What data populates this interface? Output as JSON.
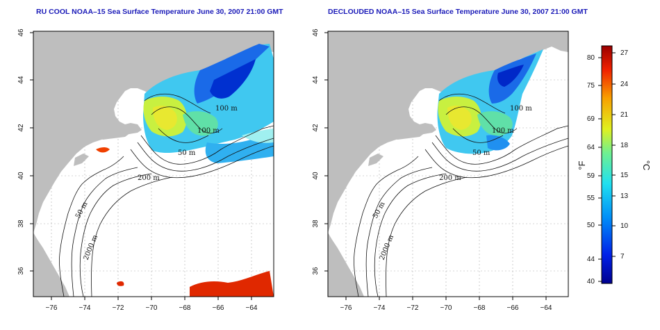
{
  "maps": [
    {
      "title": "RU COOL NOAA–15 Sea Surface Temperature June 30, 2007 21:00 GMT",
      "contour_labels": [
        "100 m",
        "100 m",
        "50 m",
        "200 m",
        "50 m",
        "2000 m"
      ]
    },
    {
      "title": "DECLOUDED NOAA–15 Sea Surface Temperature June 30, 2007 21:00 GMT",
      "contour_labels": [
        "100 m",
        "100 m",
        "50 m",
        "200 m",
        "50 m",
        "2000 m"
      ]
    }
  ],
  "axes": {
    "lon_ticks": [
      "−76",
      "−74",
      "−72",
      "−70",
      "−68",
      "−66",
      "−64"
    ],
    "lat_ticks": [
      "46",
      "44",
      "42",
      "40",
      "38",
      "36"
    ]
  },
  "colorbar": {
    "f_label": "°F",
    "c_label": "°C",
    "f_ticks": [
      "80",
      "75",
      "69",
      "64",
      "59",
      "55",
      "50",
      "44",
      "40"
    ],
    "c_ticks": [
      "27",
      "24",
      "21",
      "18",
      "15",
      "13",
      "10",
      "7"
    ]
  },
  "colors": {
    "land": "#bebebe",
    "ocean": "#ffffff",
    "title": "#1a1ab8",
    "sst_cold": "#0018c8",
    "sst_mid": "#28d8f0",
    "sst_warm": "#d8f028",
    "sst_hot": "#d82000"
  }
}
